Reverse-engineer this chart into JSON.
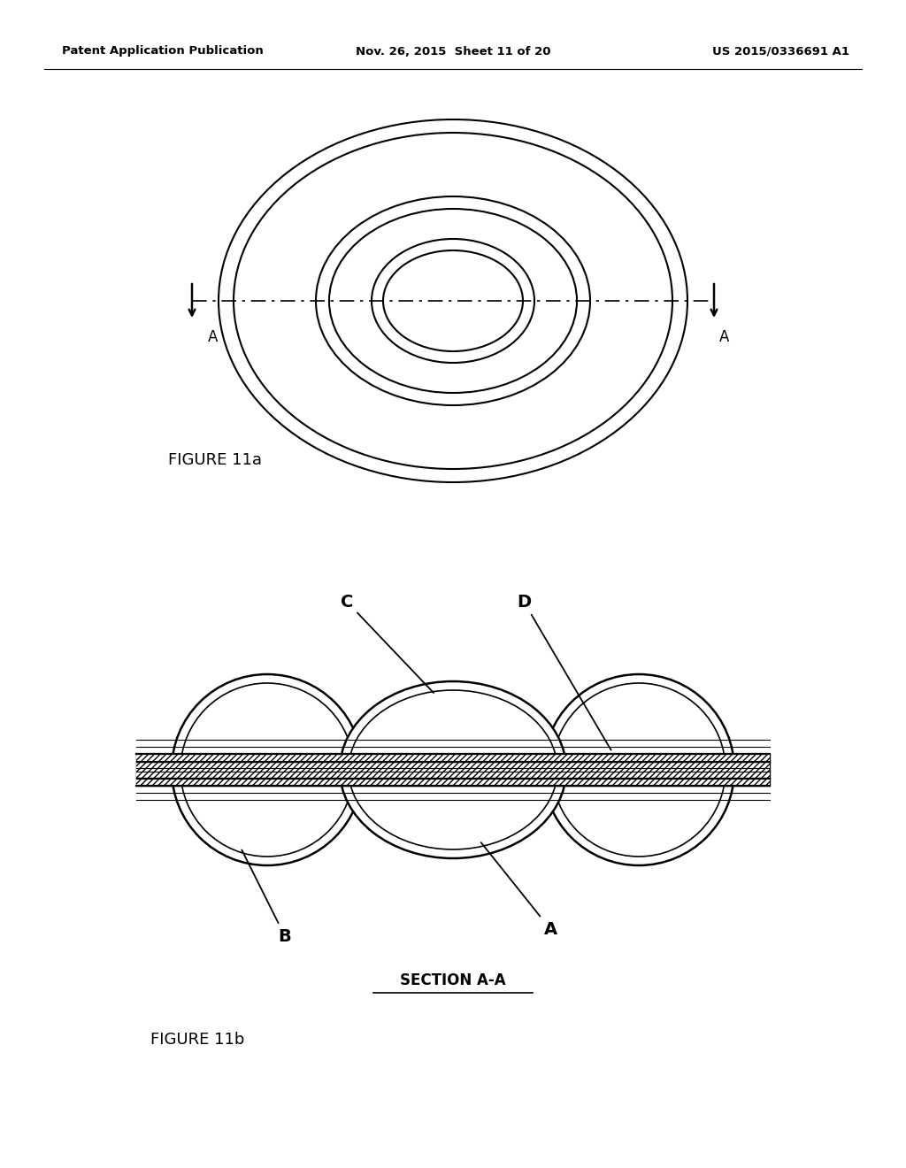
{
  "background_color": "#ffffff",
  "header_left": "Patent Application Publication",
  "header_mid": "Nov. 26, 2015  Sheet 11 of 20",
  "header_right": "US 2015/0336691 A1",
  "figure_11a_label": "FIGURE 11a",
  "figure_11b_label": "FIGURE 11b",
  "section_label": "SECTION A-A",
  "line_color": "#000000",
  "line_width": 1.5,
  "header_fontsize": 9.5,
  "fig_label_fontsize": 13,
  "annot_fontsize": 14
}
